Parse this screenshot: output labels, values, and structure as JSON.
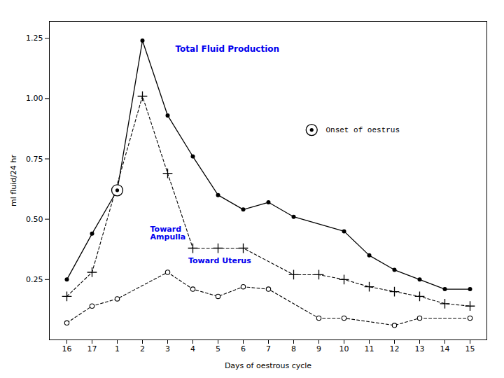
{
  "chart_data": {
    "type": "line",
    "categories": [
      "16",
      "17",
      "1",
      "2",
      "3",
      "4",
      "5",
      "6",
      "7",
      "8",
      "9",
      "10",
      "11",
      "12",
      "13",
      "14",
      "15"
    ],
    "xlabel": "Days of oestrous cycle",
    "ylabel": "ml fluid/24 hr",
    "ylim": [
      0.0,
      1.32
    ],
    "yticks": [
      0.25,
      {
        "value": 0.5,
        "label": "0.50"
      },
      0.75,
      {
        "value": 1.0,
        "label": "1.00"
      },
      1.25
    ],
    "grid": false,
    "series": [
      {
        "name": "Total Fluid Production",
        "color": "#000000",
        "label_color": "#0000EE",
        "marker": "circle",
        "line_style": "solid",
        "x": [
          "16",
          "17",
          "1",
          "2",
          "3",
          "4",
          "5",
          "6",
          "7",
          "8",
          "10",
          "11",
          "12",
          "13",
          "14",
          "15"
        ],
        "values": [
          0.25,
          0.44,
          0.62,
          1.24,
          0.93,
          0.76,
          0.6,
          0.54,
          0.57,
          0.51,
          0.45,
          0.35,
          0.29,
          0.25,
          0.21,
          0.21
        ]
      },
      {
        "name": "Toward\nAmpulla",
        "color": "#000000",
        "label_color": "#0000EE",
        "marker": "plus",
        "line_style": "dashed",
        "x": [
          "16",
          "17",
          "2",
          "3",
          "4",
          "5",
          "6",
          "8",
          "9",
          "10",
          "11",
          "12",
          "13",
          "14",
          "15"
        ],
        "values": [
          0.18,
          0.28,
          1.01,
          0.69,
          0.38,
          0.38,
          0.38,
          0.27,
          0.27,
          0.25,
          0.22,
          0.2,
          0.18,
          0.15,
          0.14
        ]
      },
      {
        "name": "Toward Uterus",
        "color": "#000000",
        "label_color": "#0000EE",
        "marker": "open circle",
        "line_style": "dashed",
        "x": [
          "16",
          "17",
          "1",
          "3",
          "4",
          "5",
          "6",
          "7",
          "9",
          "10",
          "12",
          "13",
          "15"
        ],
        "values": [
          0.07,
          0.14,
          0.17,
          0.28,
          0.21,
          0.18,
          0.22,
          0.21,
          0.09,
          0.09,
          0.06,
          0.09,
          0.09
        ]
      }
    ],
    "highlight": {
      "name": "Onset of oestrus",
      "marker": "circled dot",
      "x": "1",
      "value": 0.62
    }
  }
}
